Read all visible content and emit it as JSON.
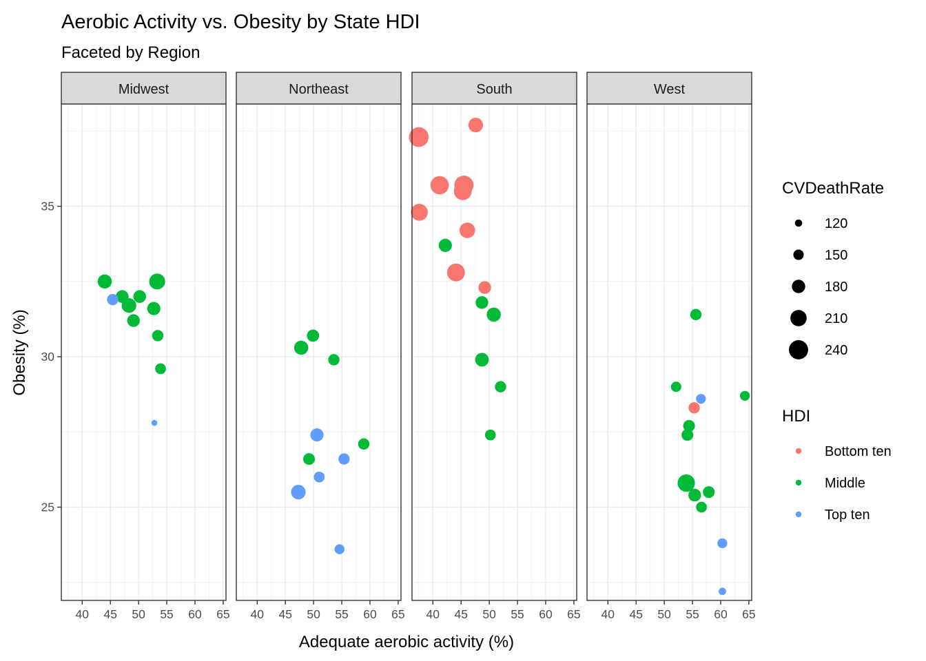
{
  "chart_data": {
    "type": "scatter",
    "title": "Aerobic Activity vs. Obesity by State HDI",
    "subtitle": "Faceted by Region",
    "xlabel": "Adequate aerobic activity (%)",
    "ylabel": "Obesity (%)",
    "xlim": [
      36.3,
      65.5
    ],
    "ylim": [
      21.9,
      38.4
    ],
    "x_ticks": [
      40,
      45,
      50,
      55,
      60,
      65
    ],
    "y_ticks": [
      25,
      30,
      35
    ],
    "grid": true,
    "facets": [
      "Midwest",
      "Northeast",
      "South",
      "West"
    ],
    "size_legend": {
      "title": "CVDeathRate",
      "values": [
        120,
        150,
        180,
        210,
        240
      ]
    },
    "color_legend": {
      "title": "HDI",
      "position": "right",
      "items": [
        {
          "label": "Bottom ten",
          "color": "#F8766D"
        },
        {
          "label": "Middle",
          "color": "#00BA38"
        },
        {
          "label": "Top ten",
          "color": "#619CFF"
        }
      ]
    },
    "points": [
      {
        "facet": "Midwest",
        "x": 44.0,
        "y": 32.5,
        "hdi": "Middle",
        "cv": 195
      },
      {
        "facet": "Midwest",
        "x": 45.4,
        "y": 31.9,
        "hdi": "Top ten",
        "cv": 165
      },
      {
        "facet": "Midwest",
        "x": 47.1,
        "y": 32.0,
        "hdi": "Middle",
        "cv": 180
      },
      {
        "facet": "Midwest",
        "x": 48.3,
        "y": 31.7,
        "hdi": "Middle",
        "cv": 200
      },
      {
        "facet": "Midwest",
        "x": 49.1,
        "y": 31.2,
        "hdi": "Middle",
        "cv": 180
      },
      {
        "facet": "Midwest",
        "x": 50.2,
        "y": 32.0,
        "hdi": "Middle",
        "cv": 180
      },
      {
        "facet": "Midwest",
        "x": 52.7,
        "y": 31.6,
        "hdi": "Middle",
        "cv": 185
      },
      {
        "facet": "Midwest",
        "x": 53.3,
        "y": 32.5,
        "hdi": "Middle",
        "cv": 215
      },
      {
        "facet": "Midwest",
        "x": 53.4,
        "y": 30.7,
        "hdi": "Middle",
        "cv": 165
      },
      {
        "facet": "Midwest",
        "x": 53.9,
        "y": 29.6,
        "hdi": "Middle",
        "cv": 160
      },
      {
        "facet": "Midwest",
        "x": 52.8,
        "y": 27.8,
        "hdi": "Top ten",
        "cv": 110
      },
      {
        "facet": "Northeast",
        "x": 47.8,
        "y": 30.3,
        "hdi": "Middle",
        "cv": 195
      },
      {
        "facet": "Northeast",
        "x": 49.9,
        "y": 30.7,
        "hdi": "Middle",
        "cv": 175
      },
      {
        "facet": "Northeast",
        "x": 53.6,
        "y": 29.9,
        "hdi": "Middle",
        "cv": 165
      },
      {
        "facet": "Northeast",
        "x": 50.6,
        "y": 27.4,
        "hdi": "Top ten",
        "cv": 185
      },
      {
        "facet": "Northeast",
        "x": 58.9,
        "y": 27.1,
        "hdi": "Middle",
        "cv": 165
      },
      {
        "facet": "Northeast",
        "x": 49.2,
        "y": 26.6,
        "hdi": "Middle",
        "cv": 170
      },
      {
        "facet": "Northeast",
        "x": 55.4,
        "y": 26.6,
        "hdi": "Top ten",
        "cv": 165
      },
      {
        "facet": "Northeast",
        "x": 51.0,
        "y": 26.0,
        "hdi": "Top ten",
        "cv": 160
      },
      {
        "facet": "Northeast",
        "x": 47.3,
        "y": 25.5,
        "hdi": "Top ten",
        "cv": 200
      },
      {
        "facet": "Northeast",
        "x": 54.6,
        "y": 23.6,
        "hdi": "Top ten",
        "cv": 150
      },
      {
        "facet": "South",
        "x": 37.5,
        "y": 37.3,
        "hdi": "Bottom ten",
        "cv": 255
      },
      {
        "facet": "South",
        "x": 47.6,
        "y": 37.7,
        "hdi": "Bottom ten",
        "cv": 200
      },
      {
        "facet": "South",
        "x": 41.2,
        "y": 35.7,
        "hdi": "Bottom ten",
        "cv": 240
      },
      {
        "facet": "South",
        "x": 45.5,
        "y": 35.7,
        "hdi": "Bottom ten",
        "cv": 250
      },
      {
        "facet": "South",
        "x": 45.3,
        "y": 35.5,
        "hdi": "Bottom ten",
        "cv": 235
      },
      {
        "facet": "South",
        "x": 37.6,
        "y": 34.8,
        "hdi": "Bottom ten",
        "cv": 225
      },
      {
        "facet": "South",
        "x": 46.1,
        "y": 34.2,
        "hdi": "Bottom ten",
        "cv": 210
      },
      {
        "facet": "South",
        "x": 42.2,
        "y": 33.7,
        "hdi": "Middle",
        "cv": 185
      },
      {
        "facet": "South",
        "x": 44.1,
        "y": 32.8,
        "hdi": "Bottom ten",
        "cv": 235
      },
      {
        "facet": "South",
        "x": 49.2,
        "y": 32.3,
        "hdi": "Bottom ten",
        "cv": 180
      },
      {
        "facet": "South",
        "x": 48.7,
        "y": 31.8,
        "hdi": "Middle",
        "cv": 180
      },
      {
        "facet": "South",
        "x": 50.8,
        "y": 31.4,
        "hdi": "Middle",
        "cv": 195
      },
      {
        "facet": "South",
        "x": 48.7,
        "y": 29.9,
        "hdi": "Middle",
        "cv": 190
      },
      {
        "facet": "South",
        "x": 52.0,
        "y": 29.0,
        "hdi": "Middle",
        "cv": 165
      },
      {
        "facet": "South",
        "x": 50.2,
        "y": 27.4,
        "hdi": "Middle",
        "cv": 160
      },
      {
        "facet": "West",
        "x": 55.6,
        "y": 31.4,
        "hdi": "Middle",
        "cv": 165
      },
      {
        "facet": "West",
        "x": 52.1,
        "y": 29.0,
        "hdi": "Middle",
        "cv": 155
      },
      {
        "facet": "West",
        "x": 56.5,
        "y": 28.6,
        "hdi": "Top ten",
        "cv": 150
      },
      {
        "facet": "West",
        "x": 64.3,
        "y": 28.7,
        "hdi": "Middle",
        "cv": 150
      },
      {
        "facet": "West",
        "x": 55.3,
        "y": 28.3,
        "hdi": "Bottom ten",
        "cv": 165
      },
      {
        "facet": "West",
        "x": 54.4,
        "y": 27.7,
        "hdi": "Middle",
        "cv": 170
      },
      {
        "facet": "West",
        "x": 54.1,
        "y": 27.4,
        "hdi": "Middle",
        "cv": 170
      },
      {
        "facet": "West",
        "x": 53.9,
        "y": 25.8,
        "hdi": "Middle",
        "cv": 230
      },
      {
        "facet": "West",
        "x": 55.4,
        "y": 25.4,
        "hdi": "Middle",
        "cv": 180
      },
      {
        "facet": "West",
        "x": 57.9,
        "y": 25.5,
        "hdi": "Middle",
        "cv": 170
      },
      {
        "facet": "West",
        "x": 56.6,
        "y": 25.0,
        "hdi": "Middle",
        "cv": 160
      },
      {
        "facet": "West",
        "x": 60.3,
        "y": 23.8,
        "hdi": "Top ten",
        "cv": 150
      },
      {
        "facet": "West",
        "x": 60.3,
        "y": 22.2,
        "hdi": "Top ten",
        "cv": 125
      }
    ]
  }
}
